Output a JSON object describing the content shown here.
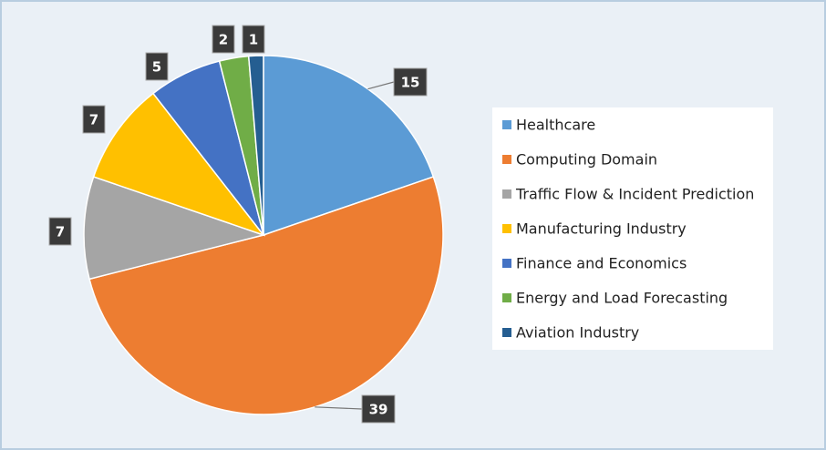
{
  "chart_data": {
    "type": "pie",
    "categories": [
      "Healthcare",
      "Computing Domain",
      "Traffic Flow & Incident Prediction",
      "Manufacturing Industry",
      "Finance and Economics",
      "Energy and Load Forecasting",
      "Aviation Industry"
    ],
    "values": [
      15,
      39,
      7,
      7,
      5,
      2,
      1
    ],
    "colors": [
      "#5b9bd5",
      "#ed7d31",
      "#a5a5a5",
      "#ffc000",
      "#4472c4",
      "#70ad47",
      "#255e91"
    ],
    "legend": "right"
  }
}
